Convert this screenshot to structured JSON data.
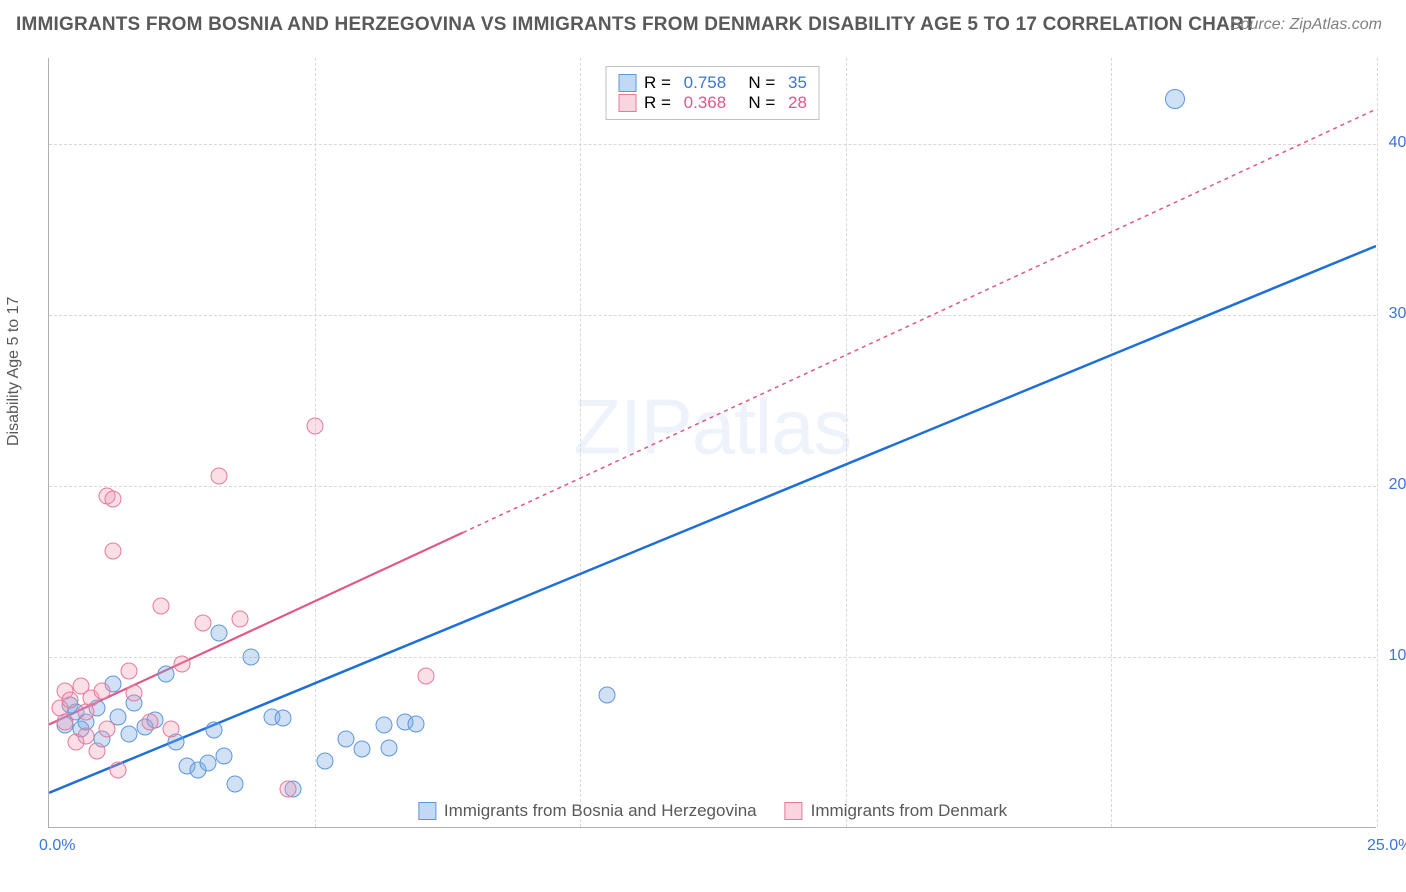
{
  "title": "IMMIGRANTS FROM BOSNIA AND HERZEGOVINA VS IMMIGRANTS FROM DENMARK DISABILITY AGE 5 TO 17 CORRELATION CHART",
  "source": "Source: ZipAtlas.com",
  "yaxis_label": "Disability Age 5 to 17",
  "watermark": "ZIPatlas",
  "chart": {
    "type": "scatter",
    "xlim": [
      0,
      25
    ],
    "ylim": [
      0,
      45
    ],
    "xticks": [
      0.0,
      25.0
    ],
    "yticks": [
      10.0,
      20.0,
      30.0,
      40.0
    ],
    "xticklabels": [
      "0.0%",
      "25.0%"
    ],
    "yticklabels": [
      "10.0%",
      "20.0%",
      "30.0%",
      "40.0%"
    ],
    "grid_x": [
      5,
      10,
      15,
      20,
      25
    ],
    "grid_y": [
      10,
      20,
      30,
      40
    ],
    "grid_color": "#d8d8d8",
    "background_color": "#ffffff",
    "marker_radius": 8.5
  },
  "series": [
    {
      "name": "Immigrants from Bosnia and Herzegovina",
      "color_fill": "rgba(120,170,230,0.35)",
      "color_stroke": "#5f97db",
      "trend_color": "#1f6fd8",
      "trend_dash": "none",
      "trend_width": 2.5,
      "R": "0.758",
      "N": "35",
      "trend": {
        "x1": 0,
        "y1": 2.0,
        "x2": 25,
        "y2": 34.0
      },
      "points": [
        {
          "x": 0.3,
          "y": 6.0
        },
        {
          "x": 0.4,
          "y": 7.2
        },
        {
          "x": 0.5,
          "y": 6.8
        },
        {
          "x": 0.6,
          "y": 5.8
        },
        {
          "x": 0.7,
          "y": 6.2
        },
        {
          "x": 0.9,
          "y": 7.0
        },
        {
          "x": 1.0,
          "y": 5.2
        },
        {
          "x": 1.2,
          "y": 8.4
        },
        {
          "x": 1.3,
          "y": 6.5
        },
        {
          "x": 1.5,
          "y": 5.5
        },
        {
          "x": 1.6,
          "y": 7.3
        },
        {
          "x": 1.8,
          "y": 5.9
        },
        {
          "x": 2.0,
          "y": 6.3
        },
        {
          "x": 2.2,
          "y": 9.0
        },
        {
          "x": 2.4,
          "y": 5.0
        },
        {
          "x": 2.6,
          "y": 3.6
        },
        {
          "x": 2.8,
          "y": 3.4
        },
        {
          "x": 3.0,
          "y": 3.8
        },
        {
          "x": 3.1,
          "y": 5.7
        },
        {
          "x": 3.2,
          "y": 11.4
        },
        {
          "x": 3.3,
          "y": 4.2
        },
        {
          "x": 3.5,
          "y": 2.6
        },
        {
          "x": 3.8,
          "y": 10.0
        },
        {
          "x": 4.2,
          "y": 6.5
        },
        {
          "x": 4.4,
          "y": 6.4
        },
        {
          "x": 4.6,
          "y": 2.3
        },
        {
          "x": 5.2,
          "y": 3.9
        },
        {
          "x": 5.6,
          "y": 5.2
        },
        {
          "x": 5.9,
          "y": 4.6
        },
        {
          "x": 6.3,
          "y": 6.0
        },
        {
          "x": 6.4,
          "y": 4.7
        },
        {
          "x": 6.7,
          "y": 6.2
        },
        {
          "x": 6.9,
          "y": 6.1
        },
        {
          "x": 10.5,
          "y": 7.8
        },
        {
          "x": 21.2,
          "y": 42.6
        }
      ]
    },
    {
      "name": "Immigrants from Denmark",
      "color_fill": "rgba(240,150,175,0.30)",
      "color_stroke": "#e77a9a",
      "trend_color": "#e05885",
      "trend_dash": "4 4",
      "trend_width": 1.5,
      "R": "0.368",
      "N": "28",
      "trend": {
        "x1": 0,
        "y1": 6.0,
        "x2": 25,
        "y2": 42.0,
        "solid_until_x": 7.8
      },
      "points": [
        {
          "x": 0.2,
          "y": 7.0
        },
        {
          "x": 0.3,
          "y": 8.0
        },
        {
          "x": 0.3,
          "y": 6.2
        },
        {
          "x": 0.4,
          "y": 7.5
        },
        {
          "x": 0.5,
          "y": 5.0
        },
        {
          "x": 0.6,
          "y": 8.3
        },
        {
          "x": 0.7,
          "y": 6.8
        },
        {
          "x": 0.7,
          "y": 5.4
        },
        {
          "x": 0.8,
          "y": 7.6
        },
        {
          "x": 0.9,
          "y": 4.5
        },
        {
          "x": 1.0,
          "y": 8.0
        },
        {
          "x": 1.1,
          "y": 5.8
        },
        {
          "x": 1.1,
          "y": 19.4
        },
        {
          "x": 1.2,
          "y": 19.2
        },
        {
          "x": 1.2,
          "y": 16.2
        },
        {
          "x": 1.3,
          "y": 3.4
        },
        {
          "x": 1.5,
          "y": 9.2
        },
        {
          "x": 1.6,
          "y": 7.9
        },
        {
          "x": 1.9,
          "y": 6.2
        },
        {
          "x": 2.1,
          "y": 13.0
        },
        {
          "x": 2.3,
          "y": 5.8
        },
        {
          "x": 2.5,
          "y": 9.6
        },
        {
          "x": 2.9,
          "y": 12.0
        },
        {
          "x": 3.2,
          "y": 20.6
        },
        {
          "x": 3.6,
          "y": 12.2
        },
        {
          "x": 4.5,
          "y": 2.3
        },
        {
          "x": 5.0,
          "y": 23.5
        },
        {
          "x": 7.1,
          "y": 8.9
        }
      ]
    }
  ],
  "legend": [
    {
      "swatch_class": "sw-blue",
      "label": "Immigrants from Bosnia and Herzegovina"
    },
    {
      "swatch_class": "sw-pink",
      "label": "Immigrants from Denmark"
    }
  ]
}
